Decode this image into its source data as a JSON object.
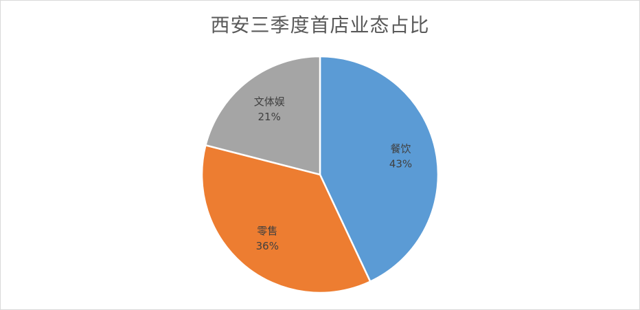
{
  "chart_data": {
    "type": "pie",
    "title": "西安三季度首店业态占比",
    "categories": [
      "餐饮",
      "零售",
      "文体娱"
    ],
    "values": [
      43,
      36,
      21
    ],
    "value_labels": [
      "43%",
      "36%",
      "21%"
    ],
    "colors": [
      "#5b9bd5",
      "#ed7d31",
      "#a5a5a5"
    ],
    "legend": "none",
    "labels_on_slices": true
  }
}
